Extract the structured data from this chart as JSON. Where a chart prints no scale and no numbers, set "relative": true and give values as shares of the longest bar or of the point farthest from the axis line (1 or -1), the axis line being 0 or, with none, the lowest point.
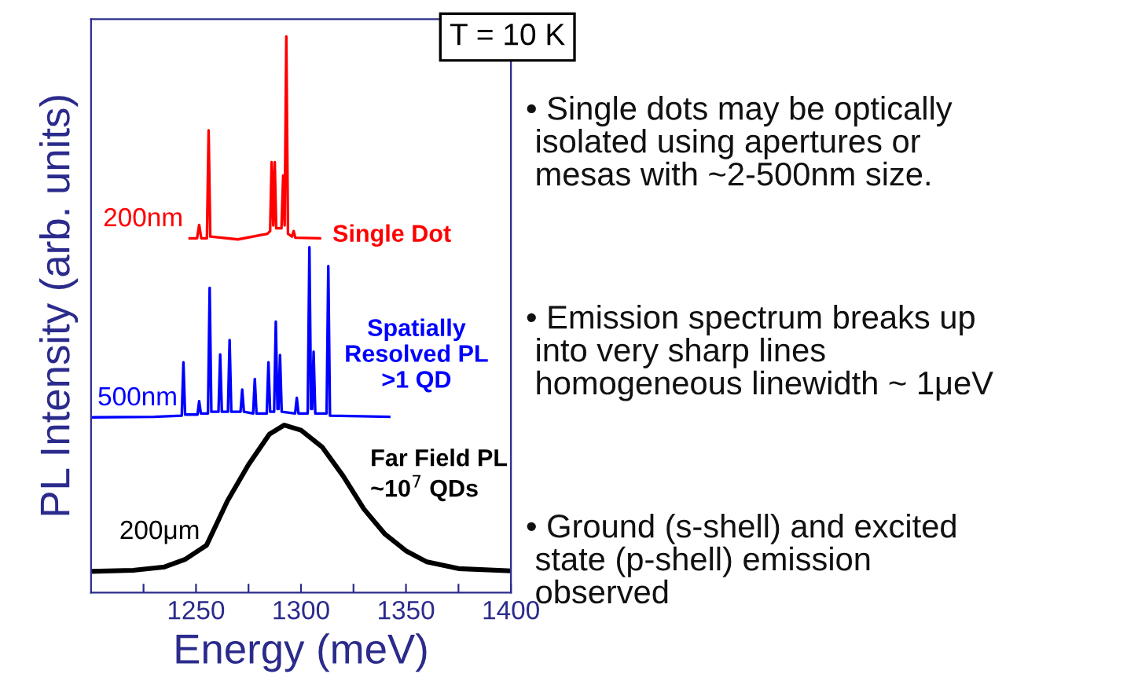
{
  "chart_data": {
    "type": "line",
    "relative": true,
    "xlabel": "Energy (meV)",
    "ylabel": "PL Intensity (arb. units)",
    "xlim": [
      1200,
      1400
    ],
    "xticks": [
      {
        "value": 1225,
        "label": null
      },
      1250,
      {
        "value": 1275,
        "label": null
      },
      1300,
      {
        "value": 1325,
        "label": null
      },
      1350,
      {
        "value": 1375,
        "label": null
      },
      1400
    ],
    "tick_labels": "x",
    "grid": false,
    "legend": false,
    "marker": "none",
    "line_style": "solid",
    "series": [
      {
        "name": "Single Dot",
        "color": "#ff0000",
        "x": [
          1247,
          1250.5,
          1251.5,
          1252.5,
          1255.2,
          1256,
          1256.8,
          1270,
          1284,
          1285.3,
          1286,
          1286.8,
          1287.5,
          1288.2,
          1290.7,
          1291.5,
          1292.2,
          1293,
          1293.8,
          1295.7,
          1296.5,
          1297.3,
          1309
        ],
        "values": [
          0.637,
          0.637,
          0.661,
          0.637,
          0.637,
          0.831,
          0.64,
          0.635,
          0.645,
          0.65,
          0.774,
          0.66,
          0.774,
          0.655,
          0.655,
          0.75,
          0.66,
          1.0,
          0.645,
          0.64,
          0.65,
          0.638,
          0.637
        ]
      },
      {
        "name": "Spatially\nResolved PL\n>1 QD",
        "color": "#0000ff",
        "x": [
          1201,
          1230,
          1243.2,
          1244,
          1244.8,
          1250.7,
          1251.5,
          1252.3,
          1255.7,
          1256.5,
          1257.3,
          1260.7,
          1261.5,
          1262.3,
          1265.2,
          1266,
          1266.8,
          1271.2,
          1272,
          1272.8,
          1277.2,
          1278,
          1278.8,
          1283.7,
          1284.5,
          1285.3,
          1287.2,
          1288,
          1288.8,
          1289.3,
          1290,
          1290.8,
          1297.2,
          1298,
          1298.8,
          1303.2,
          1304,
          1304.8,
          1305.3,
          1306,
          1306.8,
          1312.2,
          1313,
          1313.8,
          1342
        ],
        "values": [
          0.315,
          0.316,
          0.318,
          0.414,
          0.32,
          0.32,
          0.344,
          0.322,
          0.322,
          0.548,
          0.325,
          0.325,
          0.428,
          0.325,
          0.325,
          0.454,
          0.325,
          0.325,
          0.365,
          0.325,
          0.322,
          0.384,
          0.322,
          0.322,
          0.414,
          0.325,
          0.325,
          0.487,
          0.33,
          0.33,
          0.427,
          0.325,
          0.322,
          0.35,
          0.322,
          0.322,
          0.621,
          0.33,
          0.33,
          0.433,
          0.322,
          0.322,
          0.587,
          0.318,
          0.316
        ]
      },
      {
        "name": "Far Field PL\n~10$^{7}$ QDs",
        "color": "#000000",
        "x": [
          1200,
          1220,
          1235,
          1245,
          1255,
          1265,
          1275,
          1285,
          1292,
          1300,
          1310,
          1320,
          1330,
          1340,
          1350,
          1360,
          1375,
          1400
        ],
        "values": [
          0.038,
          0.04,
          0.046,
          0.06,
          0.085,
          0.165,
          0.23,
          0.285,
          0.301,
          0.292,
          0.262,
          0.21,
          0.15,
          0.105,
          0.075,
          0.055,
          0.043,
          0.039
        ]
      }
    ],
    "annotations": [
      {
        "text": "200nm",
        "x": 1247,
        "y": 0.637
      },
      {
        "text": "500nm",
        "x": 1201,
        "y": 0.315
      },
      {
        "text": "200μm",
        "x": 1255,
        "y": 0.085
      },
      "T = 10 K",
      "• Single dots may be optically\n isolated using apertures or\n mesas with ~2-500nm size.",
      "• Emission spectrum breaks up\n into very sharp lines\n homogeneous linewidth ~ 1μeV",
      "• Ground (s-shell) and excited\n state (p-shell) emission\n observed"
    ]
  }
}
